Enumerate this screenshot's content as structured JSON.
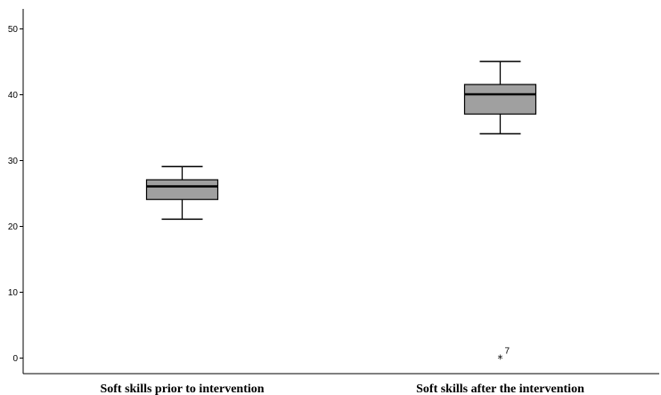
{
  "chart_data": {
    "type": "boxplot",
    "title": "",
    "xlabel": "",
    "ylabel": "",
    "ylim": [
      -2.5,
      53
    ],
    "yticks": [
      0,
      10,
      20,
      30,
      40,
      50
    ],
    "grid": false,
    "categories": [
      "Soft skills prior to intervention",
      "Soft skills after the intervention"
    ],
    "boxes": [
      {
        "min": 21,
        "q1": 24,
        "median": 26,
        "q3": 27,
        "max": 29,
        "outliers": []
      },
      {
        "min": 34,
        "q1": 37,
        "median": 40,
        "q3": 41.5,
        "max": 45,
        "outliers": [
          {
            "value": 0,
            "label": "7",
            "marker": "*"
          }
        ]
      }
    ],
    "colors": {
      "box_fill": "#a0a0a0",
      "stroke": "#000000",
      "axis": "#000000"
    }
  }
}
